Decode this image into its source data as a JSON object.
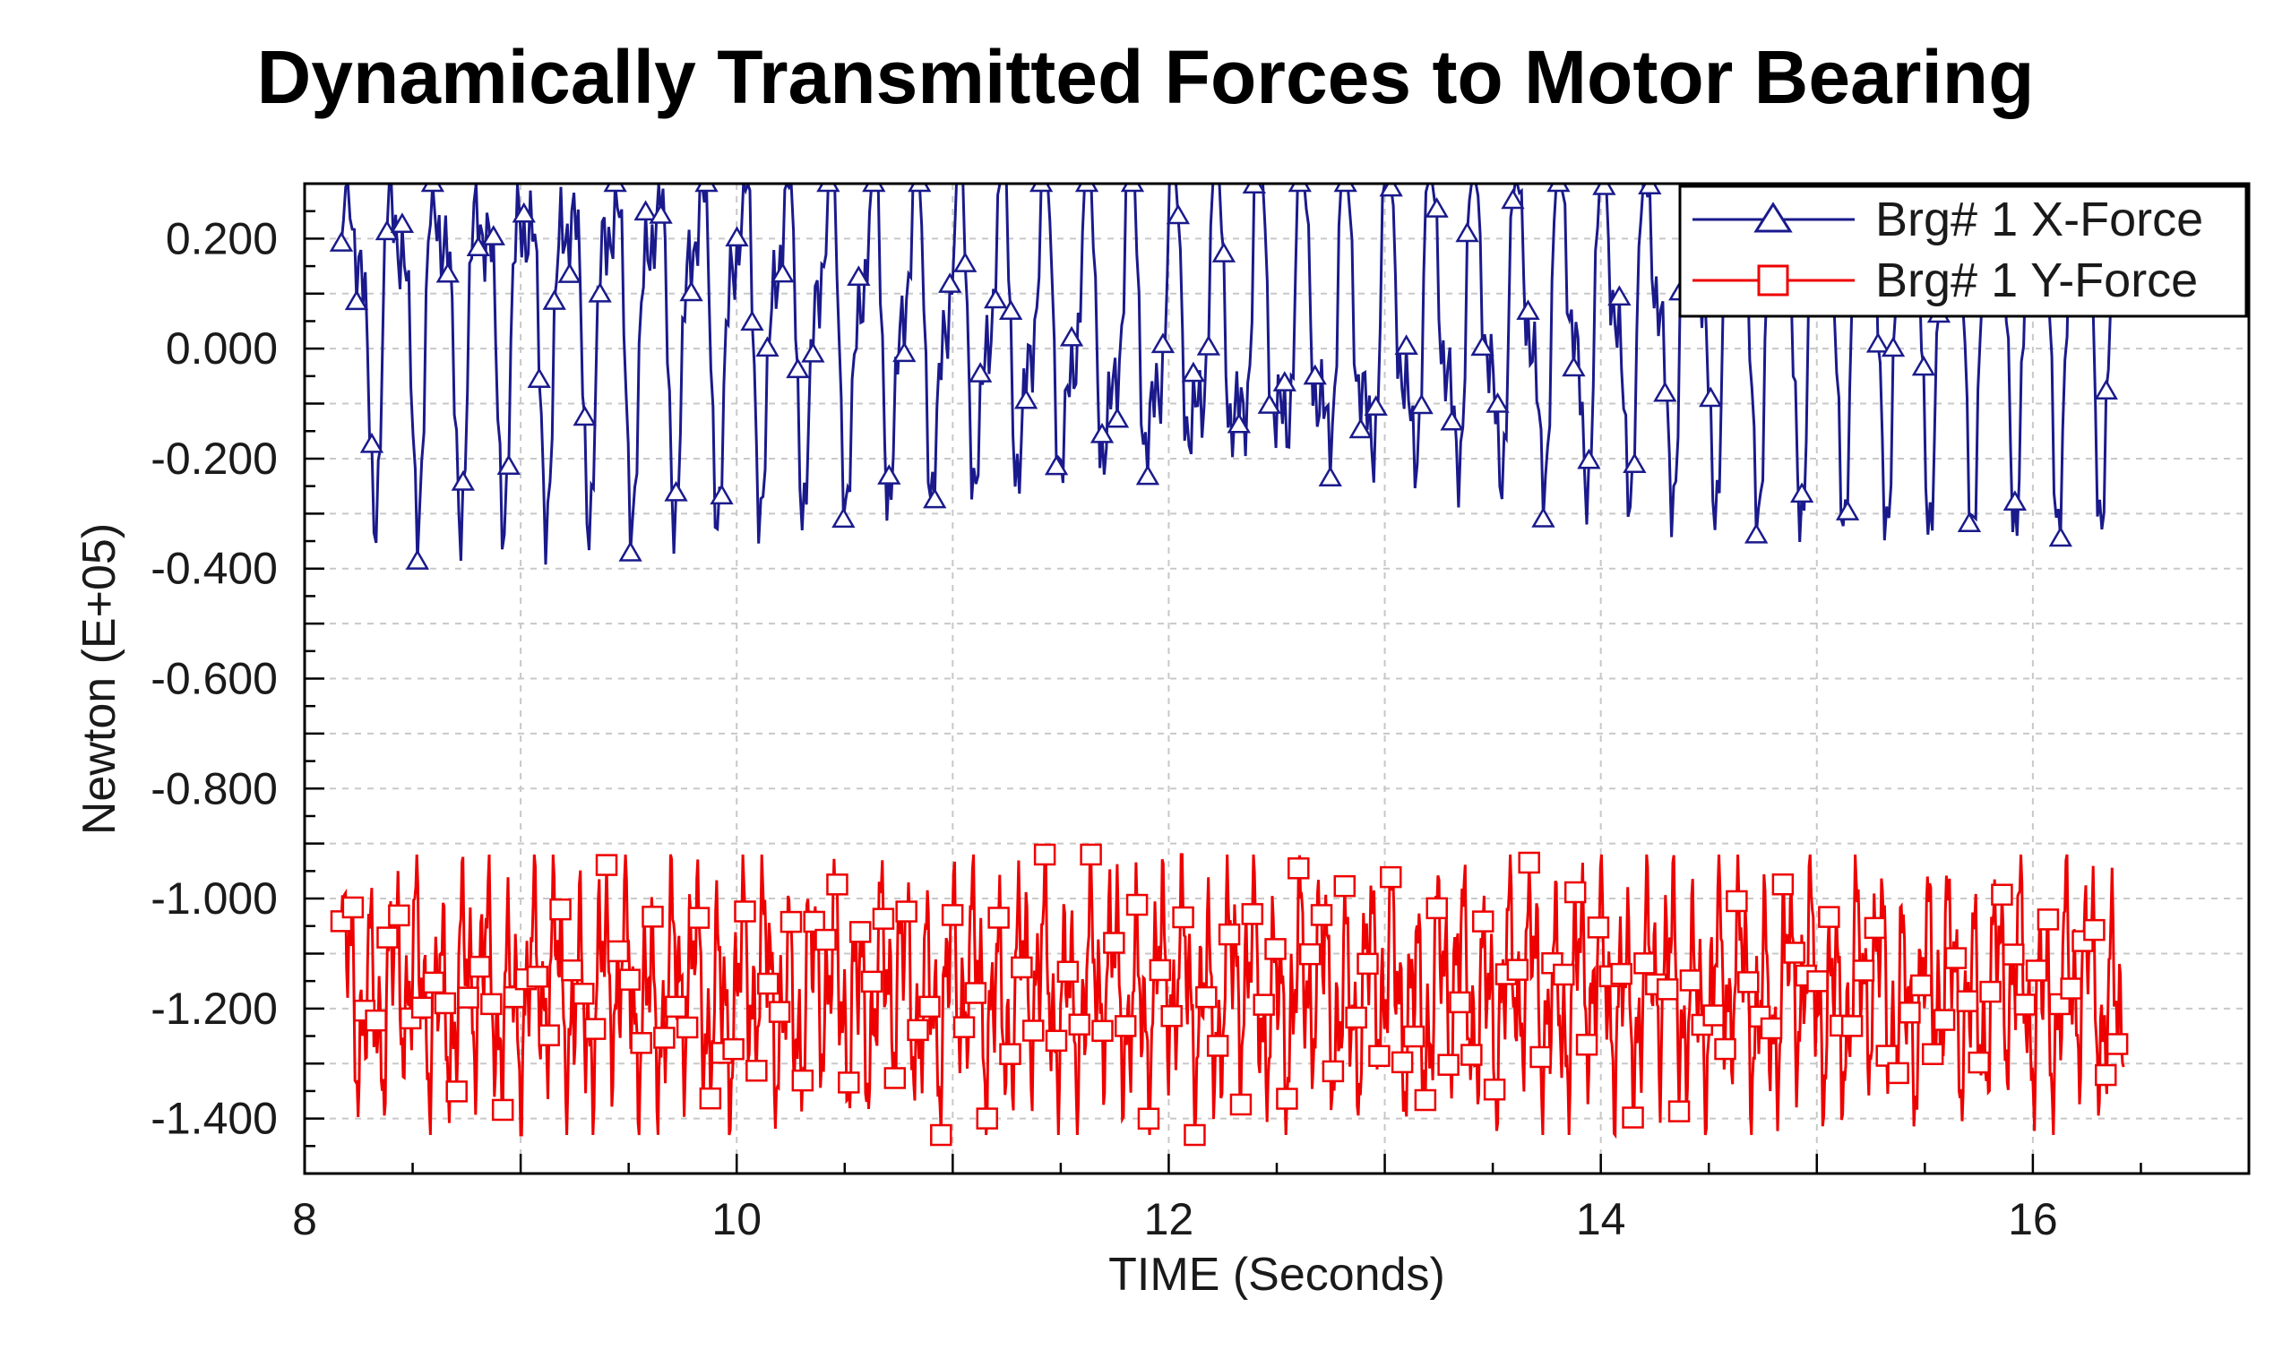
{
  "chart_data": {
    "type": "line",
    "title": "Dynamically Transmitted  Forces to Motor Bearing",
    "xlabel": "TIME (Seconds)",
    "ylabel": "Newton (E+05)",
    "xlim": [
      8,
      17
    ],
    "ylim": [
      -1.5,
      0.3
    ],
    "x_ticks": [
      8,
      10,
      12,
      14,
      16
    ],
    "x_tick_labels": [
      "8",
      "10",
      "12",
      "14",
      "16"
    ],
    "y_ticks": [
      0.2,
      0.0,
      -0.2,
      -0.4,
      -0.6,
      -0.8,
      -1.0,
      -1.2,
      -1.4
    ],
    "y_tick_labels": [
      "0.200",
      "0.000",
      "-0.200",
      "-0.400",
      "-0.600",
      "-0.800",
      "-1.000",
      "-1.200",
      "-1.400"
    ],
    "grid": true,
    "legend_position": "top-right",
    "x_start": 8.17,
    "x_end": 16.42,
    "series": [
      {
        "name": "Brg#  1 X-Force",
        "color": "#1a1a8c",
        "marker": "triangle",
        "oscillation_period": 0.2,
        "max": 0.3,
        "min": -0.4
      },
      {
        "name": "Brg#  1 Y-Force",
        "color": "#ee0000",
        "marker": "square",
        "mean": -1.17,
        "max": -0.92,
        "min": -1.43
      }
    ]
  }
}
